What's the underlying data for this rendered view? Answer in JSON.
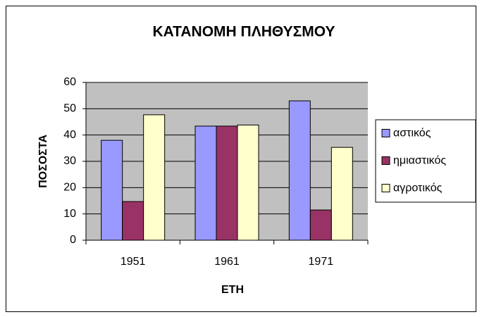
{
  "chart_data": {
    "type": "bar",
    "title": "ΚΑΤΑΝΟΜΗ  ΠΛΗΘΥΣΜΟΥ",
    "x_label": "ΕΤΗ",
    "y_label": "ΠΟΣΟΣΤΑ",
    "categories": [
      "1951",
      "1961",
      "1971"
    ],
    "series": [
      {
        "name": "αστικός",
        "color": "#9999FF",
        "values": [
          38,
          43.4,
          53
        ]
      },
      {
        "name": "ημιαστικός",
        "color": "#993366",
        "values": [
          14.7,
          43.4,
          11.5
        ]
      },
      {
        "name": "αγροτικός",
        "color": "#FFFFCC",
        "values": [
          47.7,
          43.8,
          35.3
        ]
      }
    ],
    "ylim": [
      0,
      60
    ],
    "yticks": [
      0,
      10,
      20,
      30,
      40,
      50,
      60
    ],
    "grid": true,
    "legend": "right"
  }
}
